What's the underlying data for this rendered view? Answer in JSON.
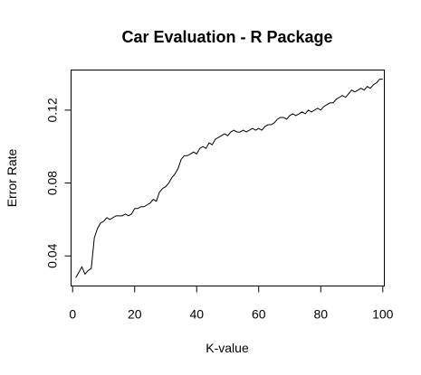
{
  "chart_data": {
    "type": "line",
    "title": "Car Evaluation - R Package",
    "xlabel": "K-value",
    "ylabel": "Error Rate",
    "xlim": [
      -0.5,
      100.5
    ],
    "ylim": [
      0.0235,
      0.142
    ],
    "xticks": [
      0,
      20,
      40,
      60,
      80,
      100
    ],
    "yticks": [
      0.04,
      0.08,
      0.12
    ],
    "xtick_labels": [
      "0",
      "20",
      "40",
      "60",
      "80",
      "100"
    ],
    "ytick_labels": [
      "0.04",
      "0.08",
      "0.12"
    ],
    "grid": false,
    "legend": "none",
    "series": [
      {
        "color": "#000000",
        "x": [
          1,
          2,
          3,
          4,
          5,
          6,
          7,
          8,
          9,
          10,
          11,
          12,
          13,
          14,
          15,
          16,
          17,
          18,
          19,
          20,
          21,
          22,
          23,
          24,
          25,
          26,
          27,
          28,
          29,
          30,
          31,
          32,
          33,
          34,
          35,
          36,
          37,
          38,
          39,
          40,
          41,
          42,
          43,
          44,
          45,
          46,
          47,
          48,
          49,
          50,
          51,
          52,
          53,
          54,
          55,
          56,
          57,
          58,
          59,
          60,
          61,
          62,
          63,
          64,
          65,
          66,
          67,
          68,
          69,
          70,
          71,
          72,
          73,
          74,
          75,
          76,
          77,
          78,
          79,
          80,
          81,
          82,
          83,
          84,
          85,
          86,
          87,
          88,
          89,
          90,
          91,
          92,
          93,
          94,
          95,
          96,
          97,
          98,
          99,
          100
        ],
        "y": [
          0.028,
          0.031,
          0.034,
          0.03,
          0.032,
          0.033,
          0.05,
          0.055,
          0.058,
          0.059,
          0.061,
          0.06,
          0.061,
          0.062,
          0.062,
          0.062,
          0.063,
          0.062,
          0.063,
          0.066,
          0.066,
          0.067,
          0.067,
          0.068,
          0.069,
          0.071,
          0.07,
          0.075,
          0.077,
          0.078,
          0.08,
          0.083,
          0.085,
          0.088,
          0.093,
          0.095,
          0.095,
          0.096,
          0.097,
          0.096,
          0.099,
          0.1,
          0.099,
          0.102,
          0.101,
          0.104,
          0.105,
          0.106,
          0.107,
          0.106,
          0.108,
          0.109,
          0.108,
          0.108,
          0.109,
          0.108,
          0.109,
          0.11,
          0.109,
          0.11,
          0.109,
          0.111,
          0.112,
          0.112,
          0.113,
          0.115,
          0.116,
          0.116,
          0.115,
          0.117,
          0.118,
          0.117,
          0.118,
          0.119,
          0.118,
          0.12,
          0.119,
          0.12,
          0.121,
          0.12,
          0.122,
          0.123,
          0.124,
          0.124,
          0.126,
          0.127,
          0.128,
          0.127,
          0.129,
          0.131,
          0.13,
          0.131,
          0.132,
          0.131,
          0.133,
          0.132,
          0.134,
          0.135,
          0.137,
          0.137
        ]
      }
    ]
  }
}
